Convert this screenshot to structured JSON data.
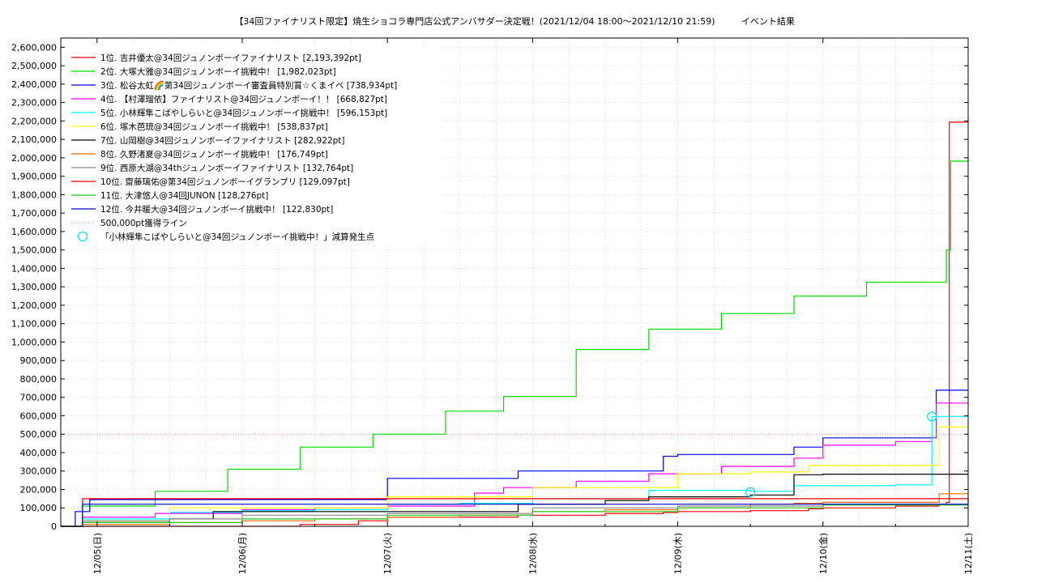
{
  "chart_data": {
    "type": "line",
    "title": "【34回ファイナリスト限定】焼生ショコラ専門店公式アンバサダー決定戦！(2021/12/04 18:00～2021/12/10 21:59)",
    "subtitle": "イベント結果",
    "ylim": [
      0,
      2650000
    ],
    "xlim": [
      -0.25,
      6.0
    ],
    "yticks": [
      0,
      100000,
      200000,
      300000,
      400000,
      500000,
      600000,
      700000,
      800000,
      900000,
      1000000,
      1100000,
      1200000,
      1300000,
      1400000,
      1500000,
      1600000,
      1700000,
      1800000,
      1900000,
      2000000,
      2100000,
      2200000,
      2300000,
      2400000,
      2500000,
      2600000
    ],
    "ytick_labels": [
      "0",
      "100,000",
      "200,000",
      "300,000",
      "400,000",
      "500,000",
      "600,000",
      "700,000",
      "800,000",
      "900,000",
      "1,000,000",
      "1,100,000",
      "1,200,000",
      "1,300,000",
      "1,400,000",
      "1,500,000",
      "1,600,000",
      "1,700,000",
      "1,800,000",
      "1,900,000",
      "2,000,000",
      "2,100,000",
      "2,200,000",
      "2,300,000",
      "2,400,000",
      "2,500,000",
      "2,600,000"
    ],
    "xticks": [
      0,
      1,
      2,
      3,
      4,
      5,
      6
    ],
    "xtick_labels": [
      "12/05(日)",
      "12/06(月)",
      "12/07(火)",
      "12/08(水)",
      "12/09(木)",
      "12/10(金)",
      "12/11(土)"
    ],
    "grid": true,
    "legend_position": "top-left",
    "series": [
      {
        "name": "1位. 吉井優太@34回ジュノンボーイファイナリスト [2,193,392pt]",
        "color": "#ff0000",
        "x": [
          -0.25,
          -0.18,
          -0.1,
          0.0,
          0.3,
          0.6,
          0.9,
          1.0,
          1.4,
          1.8,
          2.0,
          2.5,
          2.9,
          3.0,
          3.5,
          3.9,
          4.0,
          4.5,
          4.9,
          5.0,
          5.5,
          5.8,
          5.85,
          5.87,
          6.0
        ],
        "y": [
          0,
          0,
          0,
          0,
          0,
          0,
          0,
          0,
          10000,
          30000,
          50000,
          50000,
          60000,
          60000,
          70000,
          75000,
          80000,
          85000,
          95000,
          100000,
          110000,
          120000,
          130000,
          2193392,
          2193392
        ]
      },
      {
        "name": "2位. 大塚大雅@34回ジュノンボーイ挑戦中！ [1,982,023pt]",
        "color": "#00dd00",
        "x": [
          -0.25,
          -0.1,
          0.4,
          0.9,
          1.4,
          1.9,
          2.4,
          2.8,
          3.3,
          3.8,
          4.3,
          4.8,
          5.3,
          5.8,
          5.85,
          5.88,
          6.0
        ],
        "y": [
          0,
          110000,
          190000,
          310000,
          430000,
          500000,
          625000,
          705000,
          960000,
          1070000,
          1155000,
          1250000,
          1325000,
          1325000,
          1500000,
          1982023,
          1982023
        ]
      },
      {
        "name": "3位. 松谷太虹🌈第34回ジュノンボーイ審査員特別賞☆くまイベ [738,934pt]",
        "color": "#0000ff",
        "x": [
          -0.25,
          -0.15,
          -0.05,
          0.5,
          0.8,
          1.0,
          1.5,
          1.8,
          2.0,
          2.5,
          2.9,
          3.0,
          3.5,
          3.9,
          4.0,
          4.5,
          4.8,
          5.0,
          5.5,
          5.75,
          5.78,
          6.0
        ],
        "y": [
          0,
          80000,
          145000,
          145000,
          145000,
          145000,
          145000,
          145000,
          260000,
          260000,
          300000,
          300000,
          300000,
          380000,
          390000,
          390000,
          430000,
          480000,
          480000,
          480000,
          738934,
          738934
        ]
      },
      {
        "name": "4位. 【村澤瑠依】ファイナリスト@34回ジュノンボーイ！！ [668,827pt]",
        "color": "#ff00ff",
        "x": [
          -0.25,
          -0.1,
          0.4,
          1.0,
          1.5,
          2.0,
          2.6,
          2.8,
          3.0,
          3.3,
          3.8,
          4.0,
          4.3,
          4.8,
          5.0,
          5.5,
          5.75,
          5.78,
          6.0
        ],
        "y": [
          0,
          50000,
          70000,
          90000,
          100000,
          110000,
          180000,
          210000,
          210000,
          245000,
          285000,
          285000,
          325000,
          370000,
          440000,
          460000,
          480000,
          668827,
          668827
        ]
      },
      {
        "name": "5位. 小林輝隼こばやしらいと@34回ジュノンボーイ挑戦中！ [596,153pt]",
        "color": "#00ffff",
        "x": [
          -0.25,
          -0.1,
          0.5,
          1.0,
          1.5,
          2.0,
          2.5,
          3.0,
          3.5,
          3.8,
          4.0,
          4.5,
          4.8,
          5.0,
          5.5,
          5.7,
          5.75,
          6.0
        ],
        "y": [
          0,
          40000,
          75000,
          85000,
          90000,
          120000,
          125000,
          150000,
          150000,
          195000,
          195000,
          190000,
          220000,
          220000,
          225000,
          225000,
          596153,
          596153
        ]
      },
      {
        "name": "6位. 塚木芭琉@34回ジュノンボーイ挑戦中！ [538,837pt]",
        "color": "#ffff00",
        "x": [
          -0.25,
          -0.1,
          0.5,
          1.0,
          1.5,
          2.0,
          2.5,
          3.0,
          3.5,
          4.0,
          4.5,
          4.9,
          5.0,
          5.5,
          5.75,
          5.8,
          6.0
        ],
        "y": [
          0,
          30000,
          100000,
          100000,
          100000,
          160000,
          160000,
          210000,
          210000,
          285000,
          295000,
          330000,
          330000,
          330000,
          330000,
          538837,
          538837
        ]
      },
      {
        "name": "7位. 山岡樹@34回ジュノンボーイファイナリスト [282,922pt]",
        "color": "#000000",
        "x": [
          -0.25,
          -0.1,
          0.5,
          0.8,
          1.0,
          1.5,
          2.0,
          2.5,
          2.9,
          3.0,
          3.5,
          3.8,
          4.0,
          4.5,
          4.8,
          5.0,
          5.5,
          6.0
        ],
        "y": [
          0,
          20000,
          40000,
          80000,
          80000,
          80000,
          80000,
          80000,
          120000,
          120000,
          140000,
          160000,
          160000,
          170000,
          280000,
          282922,
          282922,
          282922
        ]
      },
      {
        "name": "8位. 久野渚夏@34回ジュノンボーイ挑戦中！ [176,749pt]",
        "color": "#ff6600",
        "x": [
          -0.25,
          -0.1,
          0.5,
          1.0,
          1.5,
          2.0,
          2.5,
          3.0,
          3.5,
          4.0,
          4.5,
          4.8,
          5.0,
          5.5,
          5.8,
          6.0
        ],
        "y": [
          0,
          10000,
          20000,
          30000,
          40000,
          50000,
          60000,
          80000,
          90000,
          100000,
          120000,
          125000,
          130000,
          130000,
          176749,
          176749
        ]
      },
      {
        "name": "9位. 西原大湖@34thジュノンボーイファイナリスト [132,764pt]",
        "color": "#888888",
        "x": [
          -0.25,
          -0.1,
          0.5,
          1.0,
          2.0,
          3.0,
          4.0,
          5.0,
          6.0
        ],
        "y": [
          0,
          30000,
          40000,
          60000,
          70000,
          100000,
          110000,
          120000,
          132764
        ]
      },
      {
        "name": "10位. 齋藤璃佑@第34回ジュノンボーイグランプリ [129,097pt]",
        "color": "#ee0000",
        "x": [
          -0.25,
          -0.1,
          0.0,
          1.0,
          2.0,
          3.0,
          4.0,
          5.0,
          6.0
        ],
        "y": [
          0,
          150000,
          150000,
          150000,
          150000,
          150000,
          150000,
          150000,
          129097
        ]
      },
      {
        "name": "11位. 大津悠人@34回JUNON [128,276pt]",
        "color": "#22cc22",
        "x": [
          -0.25,
          -0.1,
          1.0,
          2.0,
          3.0,
          4.0,
          5.0,
          6.0
        ],
        "y": [
          0,
          20000,
          40000,
          60000,
          80000,
          100000,
          115000,
          128276
        ]
      },
      {
        "name": "12位. 今井暖大@34回ジュノンボーイ挑戦中！ [122,830pt]",
        "color": "#0000cc",
        "x": [
          -0.25,
          -0.1,
          1.0,
          2.0,
          3.0,
          4.0,
          5.0,
          6.0
        ],
        "y": [
          0,
          120000,
          120000,
          120000,
          120000,
          120000,
          120000,
          122830
        ]
      }
    ],
    "threshold": {
      "name": "500,000pt獲得ライン",
      "value": 500000,
      "color": "#ff88cc"
    },
    "markers": {
      "name": "「小林輝隼こばやしらいと@34回ジュノンボーイ挑戦中！」減算発生点",
      "color": "#00e5ee",
      "points": [
        {
          "x": 4.5,
          "y": 185000
        },
        {
          "x": 5.75,
          "y": 596153
        }
      ]
    }
  }
}
